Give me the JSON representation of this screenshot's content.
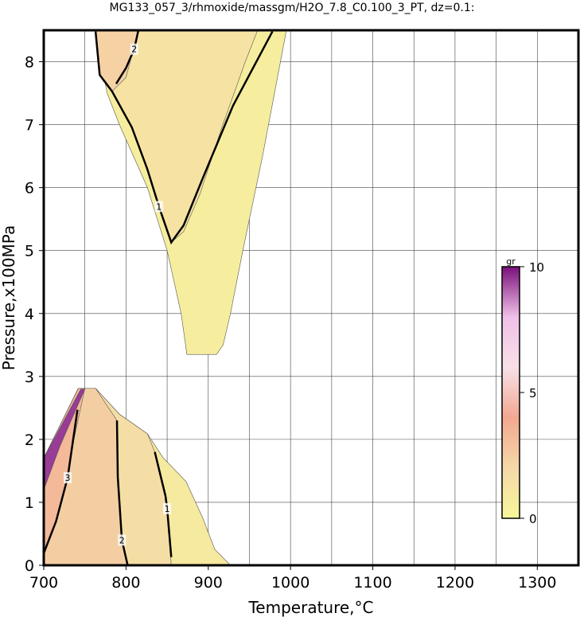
{
  "chart_data": {
    "type": "contour",
    "title": "MG133_057_3/rhmoxide/massgm/H2O_7.8_C0.100_3_PT, dz=0.1:",
    "xlabel": "Temperature,°C",
    "ylabel": "Pressure,x100MPa",
    "xlim": [
      700,
      1350
    ],
    "ylim": [
      0,
      8.5
    ],
    "xticks": [
      700,
      800,
      900,
      1000,
      1100,
      1200,
      1300
    ],
    "xminor": [
      750,
      850,
      950,
      1050,
      1150,
      1250
    ],
    "yticks": [
      0,
      1,
      2,
      3,
      4,
      5,
      6,
      7,
      8
    ],
    "grid": true,
    "colorbar": {
      "label": "gr",
      "lim": [
        0,
        10
      ],
      "ticks": [
        0,
        5,
        10
      ],
      "colors": [
        "#f7f79a",
        "#f5d8a8",
        "#f2a890",
        "#f8e0e8",
        "#f0c0e8",
        "#7a107a"
      ]
    },
    "regions": [
      {
        "level": 0.6,
        "x": [
          763,
          777,
          792,
          826,
          850,
          867,
          874,
          910,
          918,
          927,
          942,
          966,
          995
        ],
        "y": [
          8.5,
          7.5,
          7,
          6,
          5,
          4,
          3.35,
          3.35,
          3.5,
          4,
          5,
          6.5,
          8.5
        ]
      },
      {
        "level": 1.3,
        "x": [
          763,
          768,
          783,
          807,
          826,
          840,
          855,
          870,
          890,
          915,
          945,
          960
        ],
        "y": [
          8.5,
          7.79,
          7.53,
          6.96,
          6.29,
          5.7,
          5.13,
          5.3,
          5.9,
          6.9,
          8,
          8.5
        ]
      },
      {
        "level": 2.3,
        "x": [
          763,
          768,
          783,
          800,
          815
        ],
        "y": [
          8.5,
          7.79,
          7.53,
          7.75,
          8.5
        ]
      },
      {
        "level": 0.9,
        "x": [
          700,
          700,
          742,
          763,
          792,
          826,
          845,
          873,
          893,
          908,
          927
        ],
        "y": [
          0,
          1.7,
          2.81,
          2.81,
          2.4,
          2.09,
          1.71,
          1.33,
          0.76,
          0.25,
          0
        ]
      },
      {
        "level": 1.6,
        "x": [
          700,
          700,
          742,
          763,
          792,
          826,
          835,
          850,
          855
        ],
        "y": [
          0,
          1.7,
          2.81,
          2.81,
          2.4,
          2.09,
          1.8,
          1.0,
          0
        ]
      },
      {
        "level": 2.4,
        "x": [
          700,
          700,
          742,
          763,
          789,
          790,
          795,
          802
        ],
        "y": [
          0,
          1.7,
          2.81,
          2.81,
          2.3,
          1.4,
          0.4,
          0
        ]
      },
      {
        "level": 3.3,
        "x": [
          700,
          700,
          742,
          750,
          735,
          729,
          715,
          700
        ],
        "y": [
          0,
          1.7,
          2.81,
          2.81,
          1.9,
          1.39,
          0.7,
          0.19
        ]
      },
      {
        "level": 9.5,
        "x": [
          700,
          700,
          745,
          750,
          720
        ],
        "y": [
          1.2,
          1.7,
          2.8,
          2.8,
          1.9
        ]
      }
    ],
    "contours": [
      {
        "level": 1,
        "x": [
          763,
          768,
          783,
          807,
          826,
          840,
          855,
          870,
          893,
          930,
          978
        ],
        "y": [
          8.48,
          7.79,
          7.53,
          6.96,
          6.29,
          5.7,
          5.13,
          5.4,
          6.14,
          7.3,
          8.48
        ]
      },
      {
        "level": 2,
        "x": [
          788,
          800,
          810,
          815
        ],
        "y": [
          7.65,
          7.9,
          8.2,
          8.5
        ]
      },
      {
        "level": 3,
        "x": [
          700,
          715,
          729,
          741
        ],
        "y": [
          0.19,
          0.7,
          1.39,
          2.47
        ]
      },
      {
        "level": 2,
        "x": [
          789,
          790,
          795,
          802
        ],
        "y": [
          2.3,
          1.4,
          0.4,
          0
        ]
      },
      {
        "level": 1,
        "x": [
          835,
          848,
          850,
          855
        ],
        "y": [
          1.8,
          1.1,
          0.9,
          0.13
        ]
      }
    ]
  }
}
